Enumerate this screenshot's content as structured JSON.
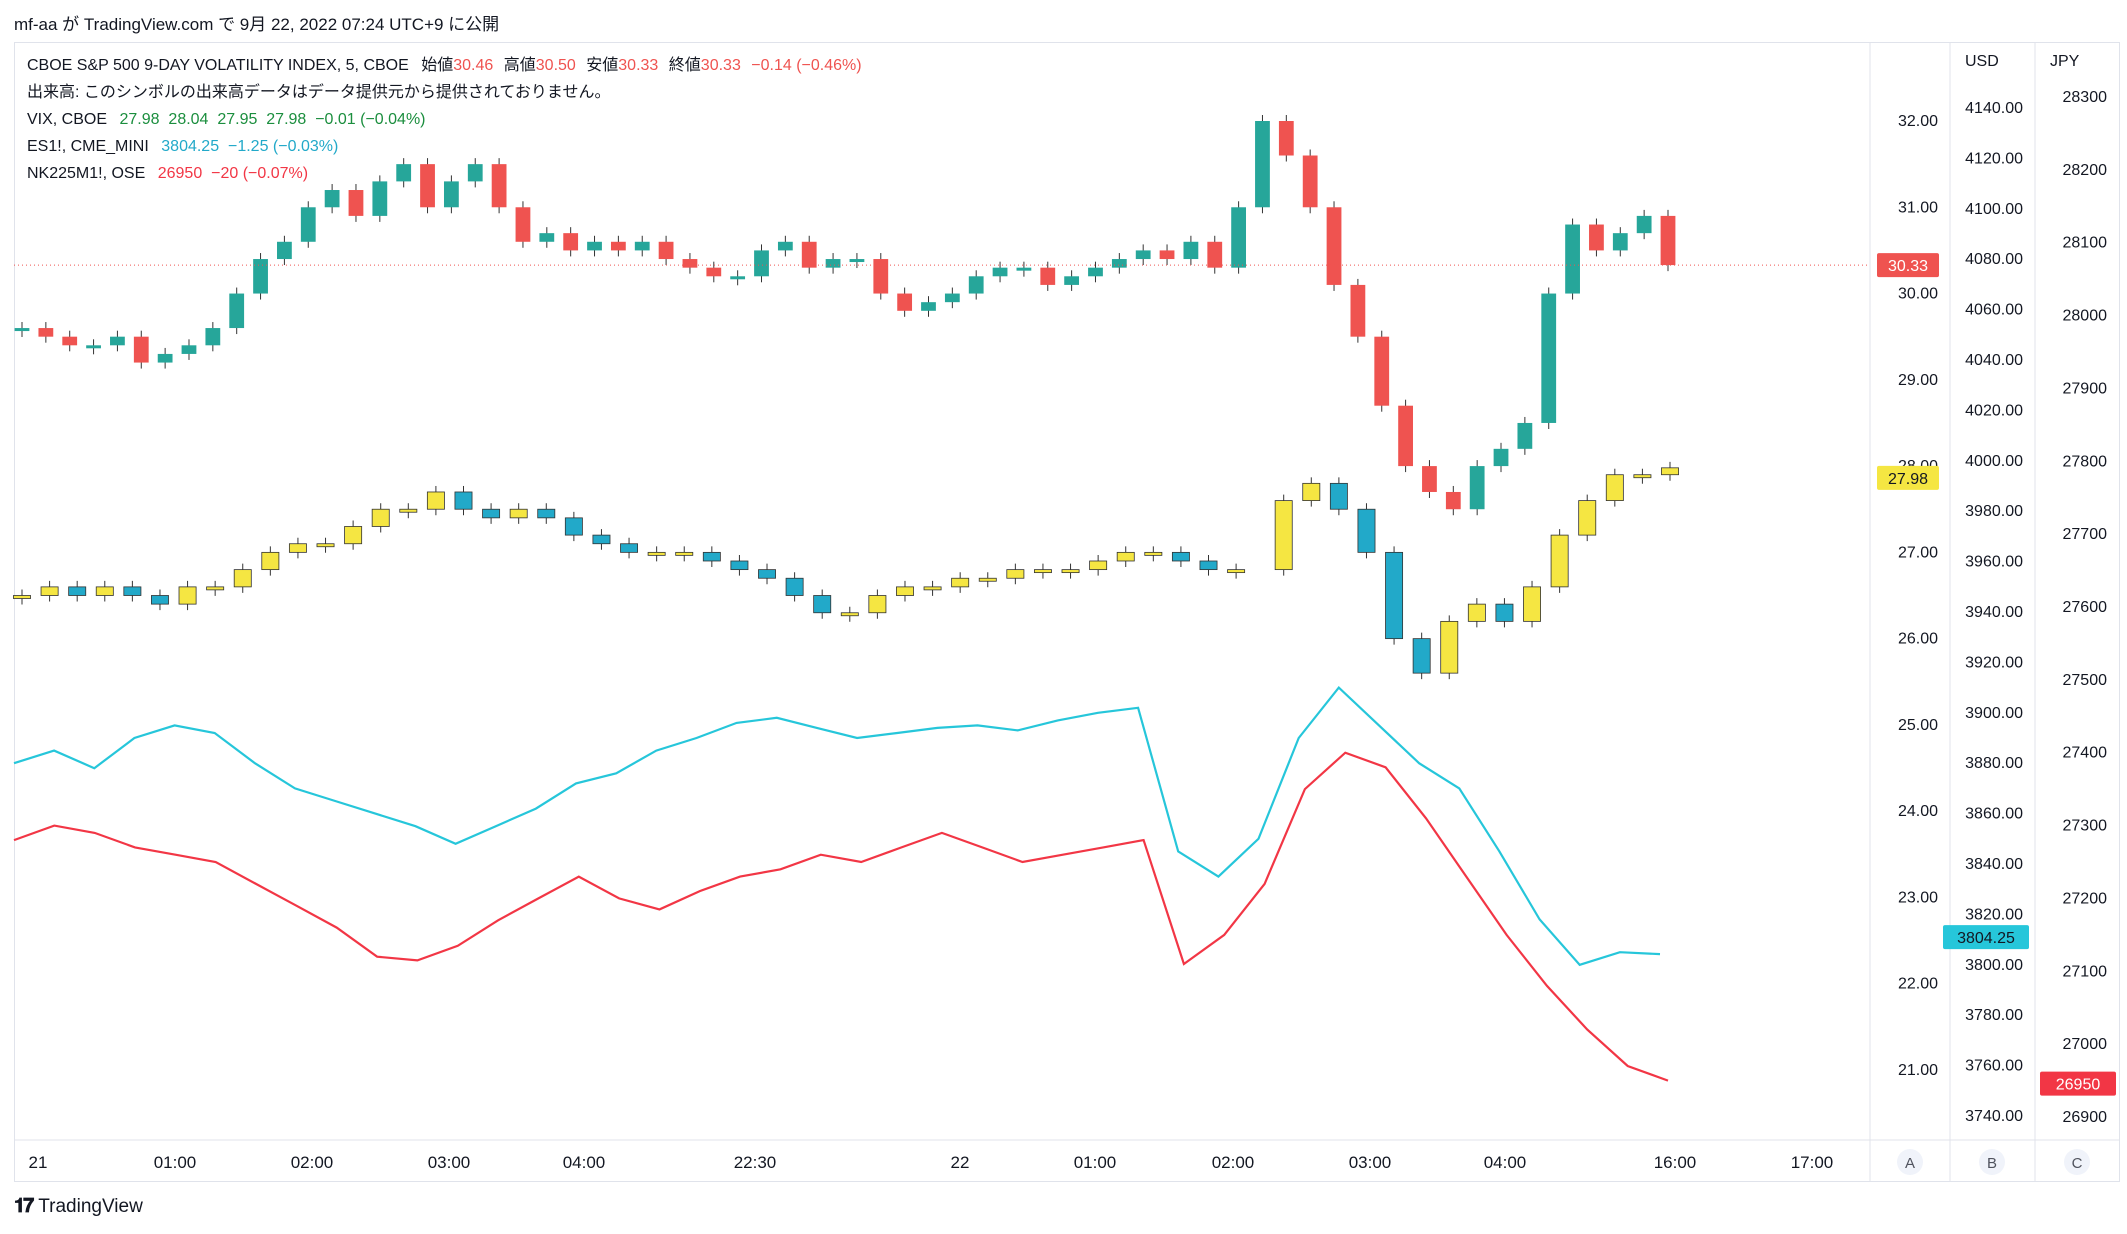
{
  "attribution": "mf-aa が TradingView.com で 9月 22, 2022 07:24 UTC+9 に公開",
  "branding": "TradingView",
  "legend": {
    "main": {
      "symbol": "CBOE S&P 500 9-DAY VOLATILITY INDEX, 5, CBOE",
      "open_label": "始値",
      "open": "30.46",
      "high_label": "高値",
      "high": "30.50",
      "low_label": "安値",
      "low": "30.33",
      "close_label": "終値",
      "close": "30.33",
      "change": "−0.14 (−0.46%)"
    },
    "volume_note": "出来高: このシンボルの出来高データはデータ提供元から提供されておりません。",
    "vix": {
      "symbol": "VIX, CBOE",
      "values": "27.98  28.04  27.95  27.98  −0.01 (−0.04%)"
    },
    "es": {
      "symbol": "ES1!, CME_MINI",
      "values": "3804.25  −1.25 (−0.03%)"
    },
    "nk": {
      "symbol": "NK225M1!, OSE",
      "values": "26950  −20 (−0.07%)"
    }
  },
  "axes": {
    "scale_labels": [
      "USD",
      "JPY"
    ],
    "left_scale": [
      "32.00",
      "31.00",
      "30.00",
      "29.00",
      "28.00",
      "27.00",
      "26.00",
      "25.00",
      "24.00",
      "23.00",
      "22.00",
      "21.00"
    ],
    "usd_scale": [
      "4140.00",
      "4120.00",
      "4100.00",
      "4080.00",
      "4060.00",
      "4040.00",
      "4020.00",
      "4000.00",
      "3980.00",
      "3960.00",
      "3940.00",
      "3920.00",
      "3900.00",
      "3880.00",
      "3860.00",
      "3840.00",
      "3820.00",
      "3800.00",
      "3780.00",
      "3760.00",
      "3740.00"
    ],
    "jpy_scale": [
      "28300",
      "28200",
      "28100",
      "28000",
      "27900",
      "27800",
      "27700",
      "27600",
      "27500",
      "27400",
      "27300",
      "27200",
      "27100",
      "27000",
      "26900"
    ],
    "time_labels": [
      "21",
      "01:00",
      "02:00",
      "03:00",
      "04:00",
      "22:30",
      "22",
      "01:00",
      "02:00",
      "03:00",
      "04:00",
      "16:00",
      "17:00"
    ],
    "scale_buttons": [
      "A",
      "B",
      "C"
    ],
    "price_tags": {
      "vix9d": "30.33",
      "vix": "27.98",
      "es": "3804.25",
      "nk": "26950"
    }
  },
  "colors": {
    "up": "#26a69a",
    "down": "#ef5350",
    "vix_up": "#f5e642",
    "vix_down": "#22a9c9",
    "es": "#26c6da",
    "nk": "#f23645"
  },
  "chart_data": {
    "type": "line",
    "series": [
      {
        "name": "CBOE S&P 500 9-DAY VOLATILITY INDEX",
        "values": [
          29.6,
          29.5,
          29.4,
          29.4,
          29.5,
          29.2,
          29.3,
          29.4,
          29.6,
          30.0,
          30.4,
          30.6,
          31.0,
          31.2,
          30.9,
          31.3,
          31.5,
          31.0,
          31.3,
          31.5,
          31.0,
          30.6,
          30.7,
          30.5,
          30.6,
          30.5,
          30.6,
          30.4,
          30.3,
          30.2,
          30.2,
          30.5,
          30.6,
          30.3,
          30.4,
          30.4,
          30.0,
          29.8,
          29.9,
          30.0,
          30.2,
          30.3,
          30.3,
          30.1,
          30.2,
          30.3,
          30.4,
          30.5,
          30.4,
          30.6,
          30.3,
          31.0,
          32.0,
          31.6,
          31.0,
          30.1,
          29.5,
          28.7,
          28.0,
          27.7,
          27.5,
          28.0,
          28.2,
          28.5,
          30.0,
          30.8,
          30.5,
          30.7,
          30.9,
          30.33
        ]
      },
      {
        "name": "VIX",
        "values": [
          26.5,
          26.6,
          26.5,
          26.6,
          26.5,
          26.4,
          26.6,
          26.6,
          26.8,
          27.0,
          27.1,
          27.1,
          27.3,
          27.5,
          27.5,
          27.7,
          27.5,
          27.4,
          27.5,
          27.4,
          27.2,
          27.1,
          27.0,
          27.0,
          27.0,
          26.9,
          26.8,
          26.7,
          26.5,
          26.3,
          26.3,
          26.5,
          26.6,
          26.6,
          26.7,
          26.7,
          26.8,
          26.8,
          26.8,
          26.9,
          27.0,
          27.0,
          26.9,
          26.8,
          26.8,
          27.6,
          27.8,
          27.5,
          27.0,
          26.0,
          25.6,
          26.2,
          26.4,
          26.2,
          26.6,
          27.2,
          27.6,
          27.9,
          27.9,
          27.98
        ]
      },
      {
        "name": "ES1!",
        "values": [
          3880,
          3885,
          3878,
          3890,
          3895,
          3892,
          3880,
          3870,
          3865,
          3860,
          3855,
          3848,
          3855,
          3862,
          3872,
          3876,
          3885,
          3890,
          3896,
          3898,
          3894,
          3890,
          3892,
          3894,
          3895,
          3893,
          3897,
          3900,
          3902,
          3845,
          3835,
          3850,
          3890,
          3910,
          3895,
          3880,
          3870,
          3845,
          3818,
          3800,
          3805,
          3804.25
        ]
      },
      {
        "name": "NK225M1!",
        "values": [
          27280,
          27300,
          27290,
          27270,
          27260,
          27250,
          27220,
          27190,
          27160,
          27120,
          27115,
          27135,
          27170,
          27200,
          27230,
          27200,
          27185,
          27210,
          27230,
          27240,
          27260,
          27250,
          27270,
          27290,
          27270,
          27250,
          27260,
          27270,
          27280,
          27110,
          27150,
          27220,
          27350,
          27400,
          27380,
          27310,
          27230,
          27150,
          27080,
          27020,
          26970,
          26950
        ]
      }
    ],
    "ylabel": "",
    "legend_position": "top-left"
  }
}
